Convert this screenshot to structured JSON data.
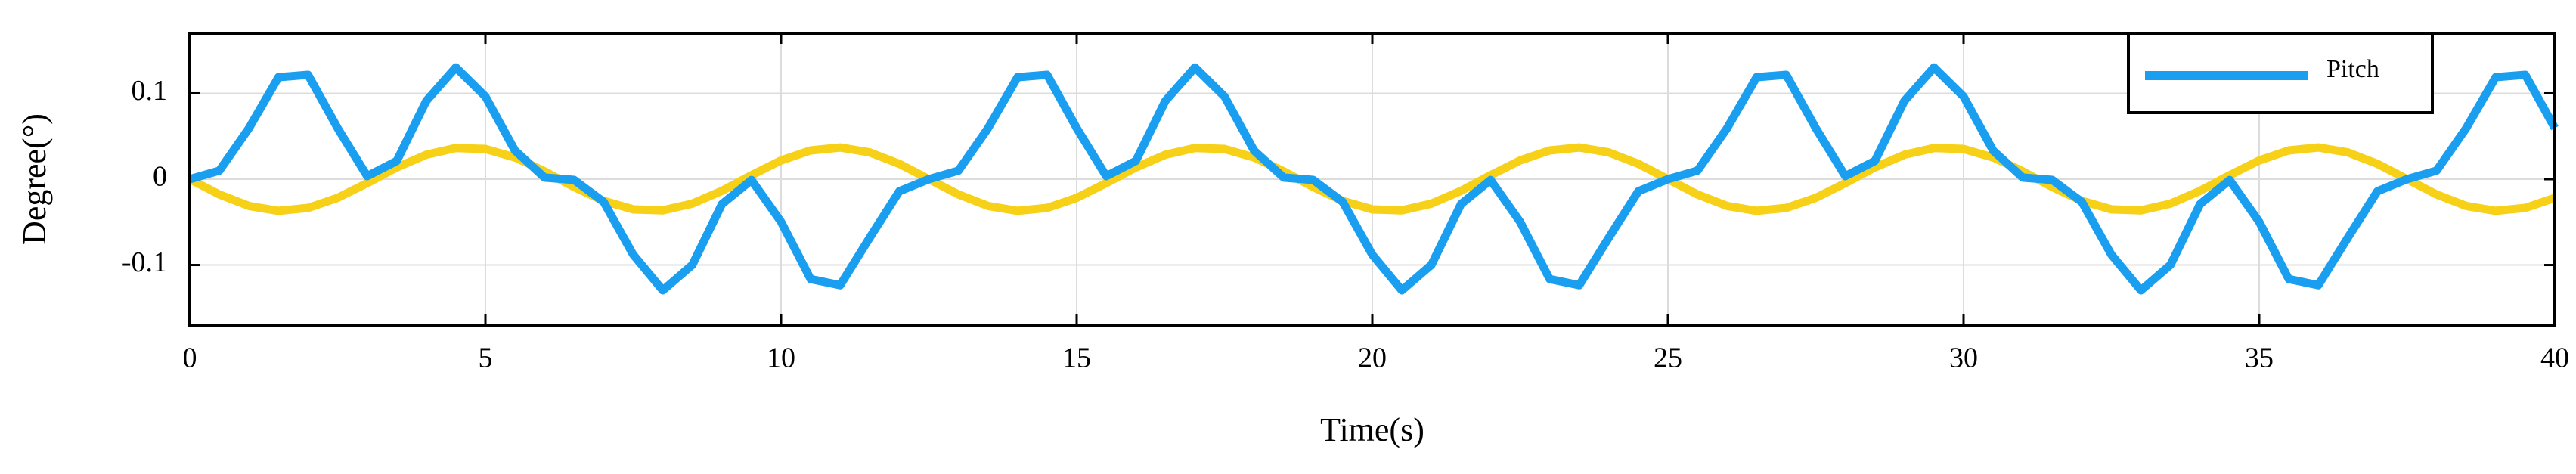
{
  "chart_data": {
    "type": "line",
    "xlabel": "Time(s)",
    "ylabel": "Degree(°)",
    "x": [
      0,
      0.5,
      1,
      1.5,
      2,
      2.5,
      3,
      3.5,
      4,
      4.5,
      5,
      5.5,
      6,
      6.5,
      7,
      7.5,
      8,
      8.5,
      9,
      9.5,
      10,
      10.5,
      11,
      11.5,
      12,
      12.5,
      13,
      13.5,
      14,
      14.5,
      15,
      15.5,
      16,
      16.5,
      17,
      17.5,
      18,
      18.5,
      19,
      19.5,
      20,
      20.5,
      21,
      21.5,
      22,
      22.5,
      23,
      23.5,
      24,
      24.5,
      25,
      25.5,
      26,
      26.5,
      27,
      27.5,
      28,
      28.5,
      29,
      29.5,
      30,
      30.5,
      31,
      31.5,
      32,
      32.5,
      33,
      33.5,
      34,
      34.5,
      35,
      35.5,
      36,
      36.5,
      37,
      37.5,
      38,
      38.5,
      39,
      39.5,
      40
    ],
    "series": [
      {
        "color": "#f7d117",
        "values": [
          0,
          -0.0178,
          -0.0312,
          -0.0369,
          -0.0335,
          -0.0218,
          -0.0046,
          0.0136,
          0.0285,
          0.0363,
          0.0352,
          0.0253,
          0.0092,
          -0.0092,
          -0.0253,
          -0.0352,
          -0.0363,
          -0.0285,
          -0.0136,
          0.0046,
          0.0218,
          0.0335,
          0.0369,
          0.0312,
          0.0178,
          0,
          -0.0178,
          -0.0312,
          -0.0369,
          -0.0335,
          -0.0218,
          -0.0046,
          0.0136,
          0.0285,
          0.0363,
          0.0352,
          0.0253,
          0.0092,
          -0.0092,
          -0.0253,
          -0.0352,
          -0.0363,
          -0.0285,
          -0.0136,
          0.0046,
          0.0218,
          0.0335,
          0.0369,
          0.0312,
          0.0178,
          0,
          -0.0178,
          -0.0312,
          -0.0369,
          -0.0335,
          -0.0218,
          -0.0046,
          0.0136,
          0.0285,
          0.0363,
          0.0352,
          0.0253,
          0.0092,
          -0.0092,
          -0.0253,
          -0.0352,
          -0.0363,
          -0.0285,
          -0.0136,
          0.0046,
          0.0218,
          0.0335,
          0.0369,
          0.0312,
          0.0178,
          0,
          -0.0178,
          -0.0312,
          -0.0369,
          -0.0335,
          -0.0218
        ]
      },
      {
        "name": "Pitch",
        "color": "#1a9ff0",
        "values": [
          0,
          0.0099,
          0.0593,
          0.1188,
          0.1216,
          0.0595,
          0.0035,
          0.0212,
          0.0912,
          0.1302,
          0.0963,
          0.0333,
          0.0019,
          -0.0009,
          -0.0265,
          -0.088,
          -0.1295,
          -0.0998,
          -0.0291,
          -0.001,
          -0.0497,
          -0.1164,
          -0.1235,
          -0.0681,
          -0.0141,
          0,
          0.0099,
          0.0593,
          0.1188,
          0.1216,
          0.0595,
          0.0035,
          0.0212,
          0.0912,
          0.1302,
          0.0963,
          0.0333,
          0.0019,
          -0.0009,
          -0.0265,
          -0.088,
          -0.1295,
          -0.0998,
          -0.0291,
          -0.001,
          -0.0497,
          -0.1164,
          -0.1235,
          -0.0681,
          -0.0141,
          0,
          0.0099,
          0.0593,
          0.1188,
          0.1216,
          0.0595,
          0.0035,
          0.0212,
          0.0912,
          0.1302,
          0.0963,
          0.0333,
          0.0019,
          -0.0009,
          -0.0265,
          -0.088,
          -0.1295,
          -0.0998,
          -0.0291,
          -0.001,
          -0.0497,
          -0.1164,
          -0.1235,
          -0.0681,
          -0.0141,
          0,
          0.0099,
          0.0593,
          0.1188,
          0.1216,
          0.0595
        ]
      }
    ],
    "xlim": [
      0,
      40
    ],
    "xticks": [
      0,
      5,
      10,
      15,
      20,
      25,
      30,
      35,
      40
    ],
    "ylim": [
      -0.17,
      0.17
    ],
    "yticks": [
      -0.1,
      0,
      0.1
    ],
    "grid": true,
    "legend": "upper right"
  }
}
